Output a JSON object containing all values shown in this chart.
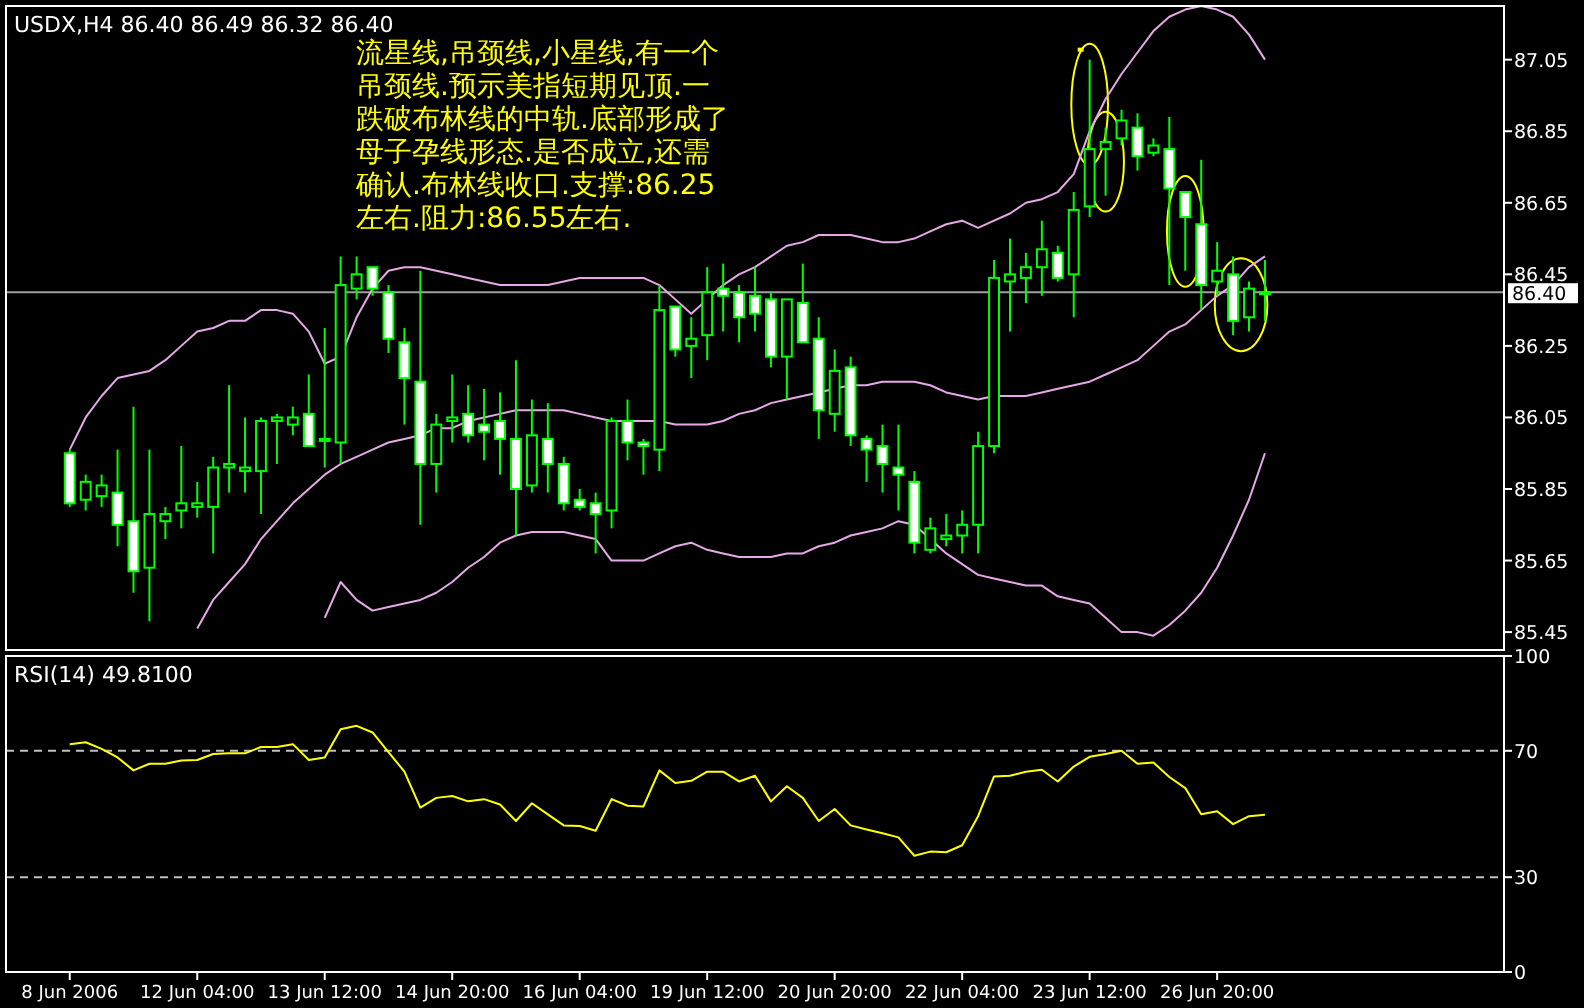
{
  "chart_data": [
    {
      "type": "candlestick",
      "title": "USDX,H4 86.40 86.49 86.32 86.40",
      "categories": [
        null,
        null,
        null,
        null,
        null,
        null,
        null,
        null,
        null,
        null,
        null,
        null,
        null,
        null,
        null,
        null,
        null,
        null,
        null,
        null,
        null,
        null,
        null,
        null,
        null,
        null,
        null,
        null,
        null,
        null,
        null,
        null,
        null,
        null,
        null,
        null,
        null,
        null,
        null,
        null,
        null,
        null,
        null,
        null,
        null,
        null,
        null,
        null,
        null,
        null,
        null,
        null,
        null,
        null,
        null,
        null,
        null,
        null,
        null,
        null,
        null,
        null,
        null,
        null,
        null,
        null,
        null,
        null,
        null,
        null,
        null,
        null,
        null,
        null,
        null,
        null
      ],
      "ohlc": [
        [
          85.95,
          85.96,
          85.8,
          85.81
        ],
        [
          85.82,
          85.89,
          85.79,
          85.87
        ],
        [
          85.83,
          85.89,
          85.8,
          85.86
        ],
        [
          85.84,
          85.96,
          85.69,
          85.75
        ],
        [
          85.76,
          86.08,
          85.56,
          85.62
        ],
        [
          85.63,
          85.96,
          85.48,
          85.78
        ],
        [
          85.76,
          85.8,
          85.71,
          85.78
        ],
        [
          85.79,
          85.97,
          85.74,
          85.81
        ],
        [
          85.8,
          85.87,
          85.77,
          85.81
        ],
        [
          85.8,
          85.94,
          85.67,
          85.91
        ],
        [
          85.91,
          86.14,
          85.84,
          85.92
        ],
        [
          85.9,
          86.05,
          85.84,
          85.91
        ],
        [
          85.9,
          86.05,
          85.78,
          86.04
        ],
        [
          86.04,
          86.06,
          85.92,
          86.05
        ],
        [
          86.03,
          86.08,
          86.0,
          86.05
        ],
        [
          86.06,
          86.17,
          85.97,
          85.97
        ],
        [
          85.99,
          86.3,
          85.91,
          85.99
        ],
        [
          85.98,
          86.5,
          85.92,
          86.42
        ],
        [
          86.41,
          86.5,
          86.38,
          86.45
        ],
        [
          86.47,
          86.47,
          86.39,
          86.41
        ],
        [
          86.4,
          86.42,
          86.23,
          86.27
        ],
        [
          86.26,
          86.3,
          86.03,
          86.16
        ],
        [
          86.15,
          86.46,
          85.75,
          85.92
        ],
        [
          85.92,
          86.06,
          85.84,
          86.03
        ],
        [
          86.04,
          86.17,
          85.98,
          86.05
        ],
        [
          86.06,
          86.14,
          85.98,
          86.0
        ],
        [
          86.03,
          86.13,
          85.93,
          86.01
        ],
        [
          86.04,
          86.12,
          85.89,
          85.99
        ],
        [
          85.99,
          86.21,
          85.72,
          85.85
        ],
        [
          85.86,
          86.1,
          85.84,
          86.0
        ],
        [
          85.99,
          86.09,
          85.84,
          85.92
        ],
        [
          85.92,
          85.94,
          85.79,
          85.81
        ],
        [
          85.82,
          85.85,
          85.79,
          85.8
        ],
        [
          85.81,
          85.84,
          85.67,
          85.78
        ],
        [
          85.79,
          86.05,
          85.74,
          86.04
        ],
        [
          86.04,
          86.1,
          85.93,
          85.98
        ],
        [
          85.98,
          85.99,
          85.89,
          85.97
        ],
        [
          85.96,
          86.42,
          85.9,
          86.35
        ],
        [
          86.36,
          86.36,
          86.22,
          86.24
        ],
        [
          86.25,
          86.33,
          86.16,
          86.27
        ],
        [
          86.28,
          86.47,
          86.21,
          86.4
        ],
        [
          86.41,
          86.48,
          86.29,
          86.39
        ],
        [
          86.4,
          86.42,
          86.26,
          86.33
        ],
        [
          86.39,
          86.47,
          86.29,
          86.34
        ],
        [
          86.38,
          86.4,
          86.19,
          86.22
        ],
        [
          86.22,
          86.38,
          86.1,
          86.38
        ],
        [
          86.37,
          86.48,
          86.26,
          86.26
        ],
        [
          86.27,
          86.33,
          85.99,
          86.07
        ],
        [
          86.06,
          86.24,
          86.01,
          86.18
        ],
        [
          86.19,
          86.22,
          85.97,
          86.0
        ],
        [
          85.99,
          86.0,
          85.87,
          85.96
        ],
        [
          85.97,
          86.03,
          85.84,
          85.92
        ],
        [
          85.91,
          86.03,
          85.79,
          85.89
        ],
        [
          85.87,
          85.9,
          85.67,
          85.7
        ],
        [
          85.68,
          85.77,
          85.67,
          85.74
        ],
        [
          85.71,
          85.78,
          85.69,
          85.72
        ],
        [
          85.72,
          85.79,
          85.67,
          85.75
        ],
        [
          85.75,
          86.01,
          85.67,
          85.97
        ],
        [
          85.97,
          86.49,
          85.95,
          86.44
        ],
        [
          86.43,
          86.55,
          86.29,
          86.45
        ],
        [
          86.44,
          86.51,
          86.37,
          86.47
        ],
        [
          86.47,
          86.6,
          86.39,
          86.52
        ],
        [
          86.51,
          86.53,
          86.43,
          86.44
        ],
        [
          86.45,
          86.68,
          86.33,
          86.63
        ],
        [
          86.64,
          87.05,
          86.61,
          86.8
        ],
        [
          86.8,
          86.86,
          86.67,
          86.82
        ],
        [
          86.83,
          86.91,
          86.81,
          86.88
        ],
        [
          86.86,
          86.9,
          86.74,
          86.78
        ],
        [
          86.79,
          86.83,
          86.78,
          86.81
        ],
        [
          86.8,
          86.89,
          86.42,
          86.69
        ],
        [
          86.68,
          86.68,
          86.46,
          86.61
        ],
        [
          86.59,
          86.77,
          86.35,
          86.42
        ],
        [
          86.43,
          86.54,
          86.39,
          86.46
        ],
        [
          86.45,
          86.5,
          86.28,
          86.32
        ],
        [
          86.33,
          86.43,
          86.29,
          86.41
        ],
        [
          86.4,
          86.49,
          86.32,
          86.4
        ]
      ],
      "series": [
        {
          "type": "line",
          "color": "#e6a8e6",
          "values": [
            85.96,
            86.05,
            86.11,
            86.16,
            86.17,
            86.18,
            86.21,
            86.25,
            86.29,
            86.3,
            86.32,
            86.32,
            86.35,
            86.35,
            86.34,
            86.29,
            86.2,
            86.22,
            86.33,
            86.41,
            86.46,
            86.47,
            86.47,
            86.46,
            86.45,
            86.44,
            86.43,
            86.42,
            86.42,
            86.42,
            86.42,
            86.43,
            86.44,
            86.44,
            86.44,
            86.44,
            86.44,
            86.42,
            86.38,
            86.34,
            86.38,
            86.42,
            86.45,
            86.47,
            86.5,
            86.53,
            86.54,
            86.56,
            86.56,
            86.56,
            86.55,
            86.54,
            86.54,
            86.55,
            86.57,
            86.59,
            86.6,
            86.58,
            86.6,
            86.62,
            86.65,
            86.66,
            86.68,
            86.73,
            86.85,
            86.94,
            87.01,
            87.07,
            87.13,
            87.17,
            87.19,
            87.2,
            87.19,
            87.17,
            87.12,
            87.05
          ]
        },
        {
          "type": "line",
          "color": "#e6a8e6",
          "values": [
            null,
            null,
            null,
            null,
            null,
            null,
            null,
            null,
            85.46,
            85.54,
            85.59,
            85.64,
            85.71,
            85.76,
            85.81,
            85.85,
            85.89,
            85.92,
            85.94,
            85.96,
            85.98,
            85.99,
            86.0,
            86.02,
            86.02,
            86.04,
            86.05,
            86.06,
            86.07,
            86.07,
            86.07,
            86.07,
            86.06,
            86.05,
            86.04,
            86.04,
            86.04,
            86.04,
            86.03,
            86.03,
            86.03,
            86.04,
            86.06,
            86.07,
            86.09,
            86.1,
            86.11,
            86.12,
            86.13,
            86.14,
            86.14,
            86.15,
            86.15,
            86.15,
            86.14,
            86.12,
            86.11,
            86.1,
            86.11,
            86.11,
            86.11,
            86.12,
            86.13,
            86.14,
            86.15,
            86.17,
            86.19,
            86.21,
            86.25,
            86.29,
            86.31,
            86.35,
            86.39,
            86.42,
            86.47,
            86.5
          ]
        },
        {
          "type": "line",
          "color": "#e6a8e6",
          "values": [
            null,
            null,
            null,
            null,
            null,
            null,
            null,
            null,
            null,
            null,
            null,
            null,
            null,
            null,
            null,
            null,
            85.49,
            85.59,
            85.54,
            85.51,
            85.52,
            85.53,
            85.54,
            85.56,
            85.59,
            85.63,
            85.66,
            85.7,
            85.72,
            85.73,
            85.73,
            85.73,
            85.72,
            85.71,
            85.65,
            85.65,
            85.65,
            85.67,
            85.69,
            85.7,
            85.68,
            85.67,
            85.66,
            85.66,
            85.66,
            85.67,
            85.67,
            85.69,
            85.7,
            85.72,
            85.73,
            85.74,
            85.76,
            85.75,
            85.71,
            85.67,
            85.64,
            85.61,
            85.6,
            85.59,
            85.58,
            85.58,
            85.55,
            85.54,
            85.53,
            85.49,
            85.45,
            85.45,
            85.44,
            85.47,
            85.51,
            85.56,
            85.63,
            85.72,
            85.82,
            85.95
          ]
        }
      ],
      "ylim": [
        85.4,
        87.2
      ],
      "yticks": [
        85.45,
        85.65,
        85.85,
        86.05,
        86.25,
        86.45,
        86.65,
        86.85,
        87.05
      ],
      "ref_lines": [
        {
          "axis": "y",
          "value": 86.4,
          "label": "86.40",
          "color": "#a0a0a0"
        }
      ],
      "annotations": [
        "流星线,吊颈线,小星线,有一个",
        "吊颈线.预示美指短期见顶.一",
        "跌破布林线的中轨.底部形成了",
        "母子孕线形态.是否成立,还需",
        "确认.布林线收口.支撑:86.25",
        "左右.阻力:86.55左右."
      ],
      "tick_labels": "y",
      "grid": false
    },
    {
      "type": "line",
      "title": "RSI(14) 49.8100",
      "categories": [
        "8 Jun 2006",
        null,
        null,
        null,
        null,
        null,
        null,
        null,
        "12 Jun 04:00",
        null,
        null,
        null,
        null,
        null,
        null,
        null,
        "13 Jun 12:00",
        null,
        null,
        null,
        null,
        null,
        null,
        null,
        "14 Jun 20:00",
        null,
        null,
        null,
        null,
        null,
        null,
        null,
        "16 Jun 04:00",
        null,
        null,
        null,
        null,
        null,
        null,
        null,
        "19 Jun 12:00",
        null,
        null,
        null,
        null,
        null,
        null,
        null,
        "20 Jun 20:00",
        null,
        null,
        null,
        null,
        null,
        null,
        null,
        "22 Jun 04:00",
        null,
        null,
        null,
        null,
        null,
        null,
        null,
        "23 Jun 12:00",
        null,
        null,
        null,
        null,
        null,
        null,
        null,
        "26 Jun 20:00",
        null,
        null,
        null
      ],
      "series": [
        {
          "color": "#ffff00",
          "values": [
            72.1,
            72.7,
            70.6,
            67.9,
            63.8,
            65.9,
            65.9,
            66.9,
            67.1,
            69.0,
            69.2,
            69.2,
            71.2,
            71.2,
            72.1,
            67.1,
            67.9,
            76.8,
            77.9,
            75.8,
            69.6,
            63.4,
            52.0,
            55.1,
            55.7,
            54.0,
            54.7,
            53.0,
            47.8,
            53.4,
            49.9,
            46.4,
            46.2,
            44.7,
            54.7,
            52.6,
            52.4,
            63.8,
            59.8,
            60.5,
            63.4,
            63.4,
            60.3,
            62.1,
            54.0,
            58.8,
            55.1,
            47.8,
            51.6,
            46.4,
            45.1,
            43.9,
            42.6,
            36.8,
            38.1,
            37.9,
            40.1,
            49.3,
            61.9,
            62.1,
            63.4,
            64.0,
            60.3,
            65.0,
            68.1,
            69.0,
            70.0,
            65.9,
            66.3,
            61.7,
            58.2,
            49.9,
            50.9,
            46.8,
            49.3,
            49.8
          ]
        }
      ],
      "ylim": [
        0,
        100
      ],
      "yticks": [
        0,
        30,
        70,
        100
      ],
      "ref_lines": [
        {
          "axis": "y",
          "value": 30,
          "color": "#c0c0c0",
          "line_style": "dashed"
        },
        {
          "axis": "y",
          "value": 70,
          "color": "#c0c0c0",
          "line_style": "dashed"
        }
      ],
      "grid": false
    }
  ]
}
